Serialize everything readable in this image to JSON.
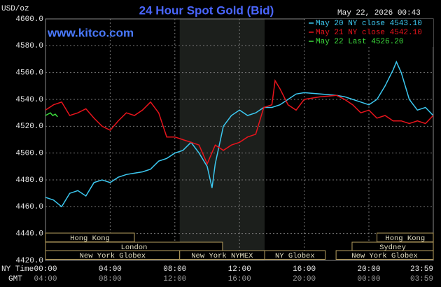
{
  "chart_data": {
    "type": "line",
    "title": "24 Hour Spot Gold (Bid)",
    "y_unit": "USD/oz",
    "timestamp": "May 22, 2026 00:43",
    "website": "www.kitco.com",
    "x_label": "NY Time",
    "x2_label": "GMT",
    "xlim": [
      0,
      23.983
    ],
    "xticks": [
      {
        "value": 0,
        "label": "00:00"
      },
      {
        "value": 4,
        "label": "04:00"
      },
      {
        "value": 8,
        "label": "08:00"
      },
      {
        "value": 12,
        "label": "12:00"
      },
      {
        "value": 16,
        "label": "16:00"
      },
      {
        "value": 20,
        "label": "20:00"
      },
      {
        "value": 23.983,
        "label": "23:59"
      }
    ],
    "x2ticks": [
      {
        "value": 0,
        "label": "04:00"
      },
      {
        "value": 4,
        "label": "08:00"
      },
      {
        "value": 8,
        "label": "12:00"
      },
      {
        "value": 12,
        "label": "16:00"
      },
      {
        "value": 16,
        "label": "20:00"
      },
      {
        "value": 20,
        "label": "00:00"
      },
      {
        "value": 23.983,
        "label": "03:59"
      }
    ],
    "ylim": [
      4420,
      4600
    ],
    "yticks": [
      {
        "value": 4420,
        "label": "4420.0"
      },
      {
        "value": 4440,
        "label": "4440.0"
      },
      {
        "value": 4460,
        "label": "4460.0"
      },
      {
        "value": 4480,
        "label": "4480.0"
      },
      {
        "value": 4500,
        "label": "4500.0"
      },
      {
        "value": 4520,
        "label": "4520.0"
      },
      {
        "value": 4540,
        "label": "4540.0"
      },
      {
        "value": 4560,
        "label": "4560.0"
      },
      {
        "value": 4580,
        "label": "4580.0"
      },
      {
        "value": 4600,
        "label": "4600.0"
      }
    ],
    "grid": true,
    "legend": "top-right",
    "series": [
      {
        "name": "May 20 NY close 4543.10",
        "color": "#3cc8f0",
        "x": [
          0,
          0.5,
          1,
          1.5,
          2,
          2.5,
          3,
          3.5,
          4,
          4.5,
          5,
          5.5,
          6,
          6.5,
          7,
          7.5,
          8,
          8.5,
          9,
          9.5,
          10,
          10.3,
          10.5,
          11,
          11.5,
          12,
          12.5,
          13,
          13.5,
          14,
          14.5,
          15,
          15.5,
          16,
          17,
          18,
          18.5,
          19,
          19.5,
          20,
          20.5,
          21,
          21.5,
          21.7,
          22,
          22.5,
          23,
          23.5,
          23.98
        ],
        "values": [
          4467,
          4465,
          4460,
          4470,
          4472,
          4468,
          4478,
          4480,
          4478,
          4482,
          4484,
          4485,
          4486,
          4488,
          4494,
          4496,
          4500,
          4502,
          4508,
          4500,
          4490,
          4474,
          4492,
          4520,
          4528,
          4532,
          4528,
          4530,
          4534,
          4534,
          4536,
          4540,
          4544,
          4545,
          4544,
          4543,
          4542,
          4540,
          4538,
          4536,
          4540,
          4550,
          4562,
          4568,
          4560,
          4540,
          4532,
          4534,
          4528
        ]
      },
      {
        "name": "May 21 NY close 4542.10",
        "color": "#e8141c",
        "x": [
          0,
          0.5,
          1,
          1.5,
          2,
          2.5,
          3,
          3.5,
          4,
          4.5,
          5,
          5.5,
          6,
          6.5,
          7,
          7.5,
          8,
          8.5,
          9,
          9.5,
          10,
          10.5,
          11,
          11.5,
          12,
          12.5,
          13,
          13.5,
          14,
          14.2,
          14.5,
          15,
          15.5,
          16,
          17,
          18,
          18.5,
          19,
          19.5,
          20,
          20.5,
          21,
          21.5,
          22,
          22.5,
          23,
          23.5,
          23.98
        ],
        "values": [
          4532,
          4536,
          4538,
          4528,
          4530,
          4533,
          4526,
          4520,
          4517,
          4524,
          4530,
          4528,
          4532,
          4538,
          4530,
          4512,
          4512,
          4510,
          4508,
          4506,
          4492,
          4506,
          4502,
          4506,
          4508,
          4512,
          4514,
          4534,
          4536,
          4554,
          4548,
          4536,
          4532,
          4540,
          4542,
          4543,
          4540,
          4536,
          4530,
          4532,
          4526,
          4528,
          4524,
          4524,
          4522,
          4524,
          4522,
          4528
        ]
      },
      {
        "name": "May 22 Last 4526.20",
        "color": "#3cdc3c",
        "x": [
          0,
          0.15,
          0.3,
          0.45,
          0.6,
          0.75
        ],
        "values": [
          4528,
          4529,
          4530,
          4528,
          4529,
          4527
        ]
      }
    ],
    "sessions": [
      {
        "label": "Hong Kong",
        "start": 0,
        "end": 5.5
      },
      {
        "label": "London",
        "start": 0,
        "end": 10.95
      },
      {
        "label": "New York Globex",
        "start": 0,
        "end": 8.3
      },
      {
        "label": "New York NYMEX",
        "start": 8.3,
        "end": 13.55,
        "highlight": true
      },
      {
        "label": "NY Globex",
        "start": 13.55,
        "end": 17.3
      },
      {
        "label": "Hong Kong",
        "start": 20.5,
        "end": 23.983
      },
      {
        "label": "Sydney",
        "start": 18.96,
        "end": 23.983
      },
      {
        "label": "New York Globex",
        "start": 17.97,
        "end": 23.983
      }
    ]
  }
}
